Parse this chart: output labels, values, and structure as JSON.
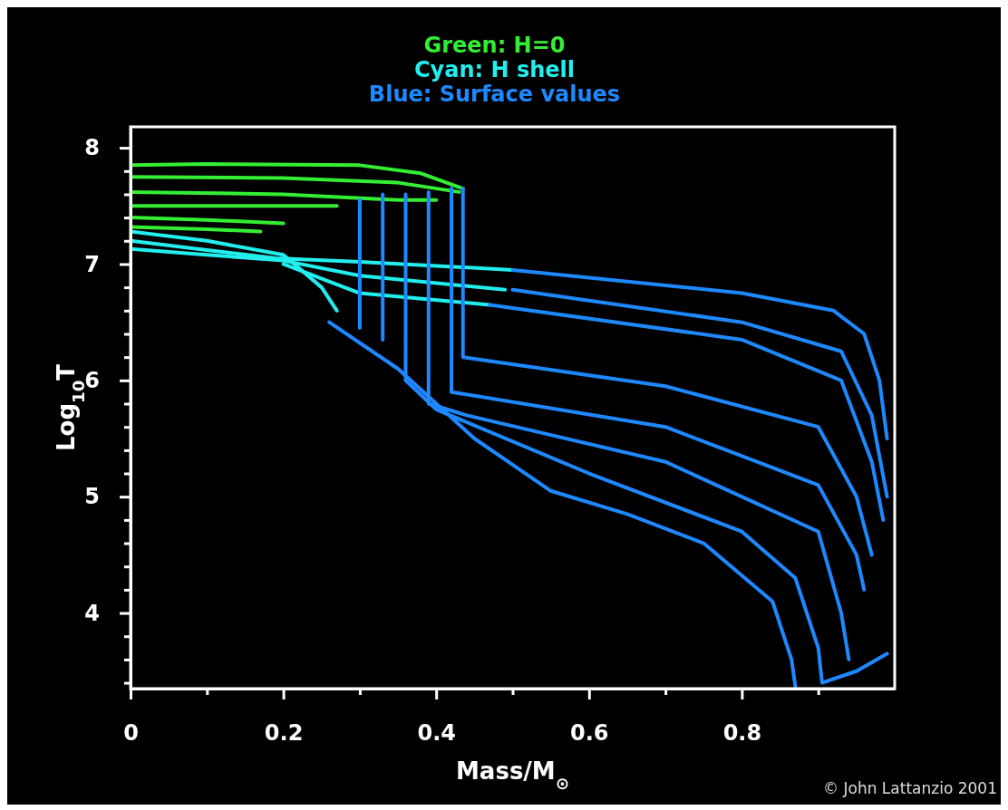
{
  "chart_data": {
    "type": "line",
    "xlabel": "Mass/M$_{⊙}$",
    "ylabel": "Log$_{10}$T",
    "annotations": [
      "© John Lattanzio 2001"
    ],
    "xlim": [
      0,
      1
    ],
    "ylim": [
      3.35,
      8.18
    ],
    "xticks": [
      0,
      {
        "value": 0.1,
        "label": null
      },
      0.2,
      {
        "value": 0.3,
        "label": null
      },
      0.4,
      {
        "value": 0.5,
        "label": null
      },
      0.6,
      {
        "value": 0.7,
        "label": null
      },
      0.8,
      {
        "value": 0.9,
        "label": null
      }
    ],
    "yticks": [
      {
        "value": 3.4,
        "label": null
      },
      {
        "value": 3.6,
        "label": null
      },
      {
        "value": 3.8,
        "label": null
      },
      4,
      {
        "value": 4.2,
        "label": null
      },
      {
        "value": 4.4,
        "label": null
      },
      {
        "value": 4.6,
        "label": null
      },
      {
        "value": 4.8,
        "label": null
      },
      5,
      {
        "value": 5.2,
        "label": null
      },
      {
        "value": 5.4,
        "label": null
      },
      {
        "value": 5.6,
        "label": null
      },
      {
        "value": 5.8,
        "label": null
      },
      6,
      {
        "value": 6.2,
        "label": null
      },
      {
        "value": 6.4,
        "label": null
      },
      {
        "value": 6.6,
        "label": null
      },
      {
        "value": 6.8,
        "label": null
      },
      7,
      {
        "value": 7.2,
        "label": null
      },
      {
        "value": 7.4,
        "label": null
      },
      {
        "value": 7.6,
        "label": null
      },
      {
        "value": 7.8,
        "label": null
      },
      8
    ],
    "grid": false,
    "legend": "top",
    "line_style": "solid",
    "marker": "none",
    "series": [
      {
        "name": "Green: H=0",
        "color": "#33ee33",
        "x": [
          0,
          0.1,
          0.3,
          0.38,
          0.435
        ],
        "values": [
          7.85,
          7.86,
          7.85,
          7.78,
          7.65
        ]
      },
      {
        "color": "#33ee33",
        "x": [
          0,
          0.2,
          0.35,
          0.43
        ],
        "values": [
          7.75,
          7.74,
          7.7,
          7.62
        ]
      },
      {
        "color": "#33ee33",
        "x": [
          0,
          0.2,
          0.35,
          0.4
        ],
        "values": [
          7.62,
          7.6,
          7.55,
          7.55
        ]
      },
      {
        "color": "#33ee33",
        "x": [
          0,
          0.15,
          0.27
        ],
        "values": [
          7.5,
          7.5,
          7.5
        ]
      },
      {
        "color": "#33ee33",
        "x": [
          0,
          0.1,
          0.2
        ],
        "values": [
          7.4,
          7.38,
          7.35
        ]
      },
      {
        "color": "#33ee33",
        "x": [
          0,
          0.1,
          0.17
        ],
        "values": [
          7.32,
          7.3,
          7.28
        ]
      },
      {
        "name": "Cyan: H shell",
        "color": "#22eeee",
        "x": [
          0,
          0.1,
          0.2,
          0.25,
          0.27
        ],
        "values": [
          7.28,
          7.2,
          7.08,
          6.8,
          6.6
        ]
      },
      {
        "color": "#22eeee",
        "x": [
          0,
          0.1,
          0.19,
          0.3,
          0.5
        ],
        "values": [
          7.2,
          7.12,
          7.05,
          7.02,
          6.95
        ]
      },
      {
        "color": "#22eeee",
        "x": [
          0,
          0.1,
          0.2,
          0.3,
          0.49
        ],
        "values": [
          7.13,
          7.08,
          7.03,
          6.9,
          6.78
        ]
      },
      {
        "color": "#22eeee",
        "x": [
          0.2,
          0.3,
          0.47
        ],
        "values": [
          7.0,
          6.75,
          6.65
        ]
      },
      {
        "name": "Blue: Surface values",
        "color": "#1e88ff",
        "x": [
          0.5,
          0.8,
          0.92,
          0.96,
          0.98,
          0.99
        ],
        "values": [
          6.95,
          6.75,
          6.6,
          6.4,
          6.0,
          5.5
        ]
      },
      {
        "color": "#1e88ff",
        "x": [
          0.5,
          0.8,
          0.93,
          0.97,
          0.99
        ],
        "values": [
          6.78,
          6.5,
          6.25,
          5.7,
          5.0
        ]
      },
      {
        "color": "#1e88ff",
        "x": [
          0.47,
          0.8,
          0.93,
          0.97,
          0.985
        ],
        "values": [
          6.65,
          6.35,
          6.0,
          5.3,
          4.8
        ]
      },
      {
        "color": "#1e88ff",
        "x": [
          0.435,
          0.435,
          0.7,
          0.9,
          0.95,
          0.97
        ],
        "values": [
          7.65,
          6.2,
          5.95,
          5.6,
          5.0,
          4.5
        ]
      },
      {
        "color": "#1e88ff",
        "x": [
          0.42,
          0.42,
          0.7,
          0.9,
          0.95,
          0.96
        ],
        "values": [
          7.65,
          5.9,
          5.6,
          5.1,
          4.5,
          4.2
        ]
      },
      {
        "color": "#1e88ff",
        "x": [
          0.39,
          0.39,
          0.44,
          0.7,
          0.9,
          0.93,
          0.94
        ],
        "values": [
          7.62,
          5.8,
          5.7,
          5.3,
          4.7,
          4.0,
          3.6
        ]
      },
      {
        "color": "#1e88ff",
        "x": [
          0.36,
          0.36,
          0.4,
          0.6,
          0.8,
          0.87,
          0.9,
          0.905,
          0.95,
          0.99
        ],
        "values": [
          7.6,
          6.0,
          5.75,
          5.2,
          4.7,
          4.3,
          3.7,
          3.4,
          3.5,
          3.65
        ]
      },
      {
        "color": "#1e88ff",
        "x": [
          0.26,
          0.35,
          0.45,
          0.55,
          0.65,
          0.75,
          0.84,
          0.865,
          0.87
        ],
        "values": [
          6.5,
          6.1,
          5.5,
          5.05,
          4.85,
          4.6,
          4.1,
          3.6,
          3.37
        ]
      },
      {
        "color": "#1e88ff",
        "x": [
          0.3,
          0.3
        ],
        "values": [
          7.55,
          6.45
        ]
      },
      {
        "color": "#1e88ff",
        "x": [
          0.33,
          0.33
        ],
        "values": [
          7.6,
          6.35
        ]
      }
    ]
  }
}
